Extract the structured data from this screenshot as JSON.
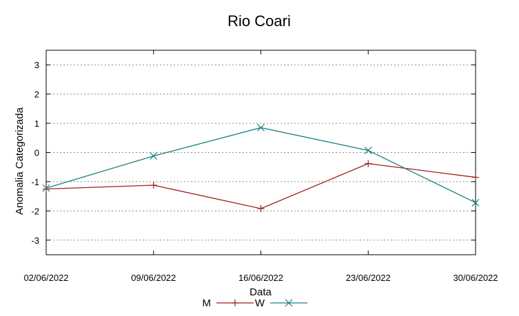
{
  "chart_data": {
    "type": "line",
    "title": "Rio Coari",
    "xlabel": "Data",
    "ylabel": "Anomalia Categorizada",
    "categories": [
      "02/06/2022",
      "09/06/2022",
      "16/06/2022",
      "23/06/2022",
      "30/06/2022"
    ],
    "ylim": [
      -3.5,
      3.5
    ],
    "yticks": [
      -3,
      -2,
      -1,
      0,
      1,
      2,
      3
    ],
    "grid": "horizontal dotted",
    "legend": "bottom-center",
    "series": [
      {
        "name": "M",
        "values": [
          -1.25,
          -1.12,
          -1.92,
          -0.38,
          -0.85
        ],
        "color": "#a01a1a",
        "marker": "plus"
      },
      {
        "name": "W",
        "values": [
          -1.22,
          -0.12,
          0.85,
          0.07,
          -1.72
        ],
        "color": "#1a8080",
        "marker": "cross"
      }
    ]
  }
}
